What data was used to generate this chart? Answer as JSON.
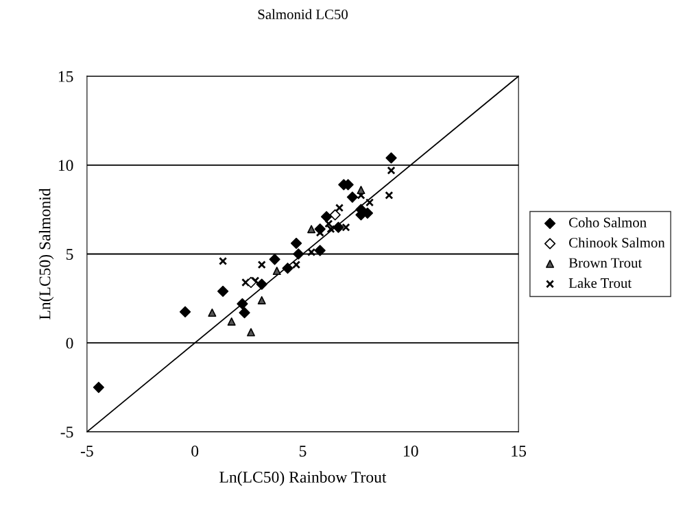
{
  "chart_data": {
    "type": "scatter",
    "title": "Salmonid LC50",
    "xlabel": "Ln(LC50) Rainbow Trout",
    "ylabel": "Ln(LC50) Salmonid",
    "xlim": [
      -5,
      15
    ],
    "ylim": [
      -5,
      15
    ],
    "xticks": [
      -5,
      0,
      5,
      10,
      15
    ],
    "yticks": [
      -5,
      0,
      5,
      10,
      15
    ],
    "grid": "y",
    "legend": "right",
    "series": [
      {
        "name": "Coho Salmon",
        "color": "#000000",
        "marker": "diamond",
        "x": [
          9.1,
          6.9,
          7.1,
          7.3,
          6.1,
          5.8,
          6.65,
          7.7,
          7.7,
          8.0,
          4.7,
          4.8,
          5.8,
          4.3,
          3.7,
          3.1,
          1.3,
          2.2,
          2.3,
          -0.45,
          -4.46
        ],
        "values": [
          10.4,
          8.9,
          8.9,
          8.2,
          7.1,
          6.4,
          6.5,
          7.5,
          7.2,
          7.3,
          5.6,
          5.0,
          5.2,
          4.2,
          4.7,
          3.3,
          2.9,
          2.2,
          1.7,
          1.75,
          -2.5
        ]
      },
      {
        "name": "Chinook Salmon",
        "color": "#ffffff",
        "marker": "diamond",
        "x": [
          6.5,
          2.6
        ],
        "values": [
          7.2,
          3.4
        ]
      },
      {
        "name": "Brown Trout",
        "color": "#555555",
        "marker": "triangle",
        "x": [
          5.4,
          3.1,
          2.6,
          1.7,
          0.8,
          7.7,
          3.8
        ],
        "values": [
          6.4,
          2.4,
          0.6,
          1.2,
          1.7,
          8.6,
          4.05
        ]
      },
      {
        "name": "Lake Trout",
        "color": "#000000",
        "marker": "cross",
        "x": [
          9.1,
          9.0,
          7.7,
          8.1,
          6.7,
          6.2,
          6.3,
          7.0,
          5.8,
          5.4,
          4.7,
          3.1,
          1.3,
          2.35,
          2.8
        ],
        "values": [
          9.7,
          8.3,
          8.3,
          7.9,
          7.6,
          6.7,
          6.4,
          6.5,
          6.2,
          5.1,
          4.4,
          4.4,
          4.6,
          3.4,
          3.5
        ]
      },
      {
        "type": "line",
        "color": "#000000",
        "x": [
          -5,
          15
        ],
        "values": [
          -5,
          15
        ]
      }
    ]
  }
}
